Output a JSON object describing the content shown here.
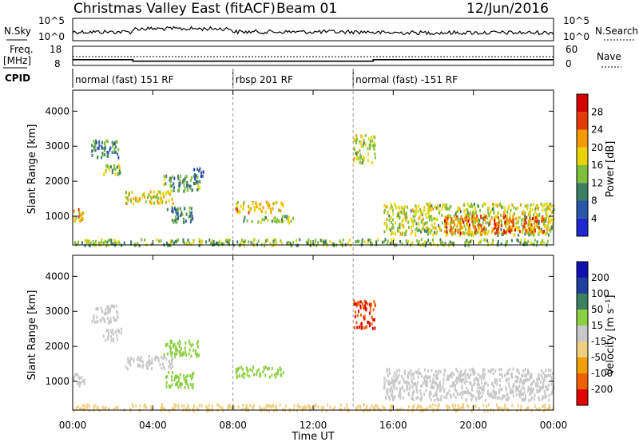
{
  "header": {
    "title": "Christmas Valley East (fitACF)",
    "beam": "Beam 01",
    "date": "12/Jun/2016"
  },
  "top_panels": {
    "nsky_label": "N.Sky",
    "nsky_ticks": [
      "10^5",
      "10^0"
    ],
    "nsearch_label": "N.Search",
    "nsearch_ticks": [
      "10^5",
      "10^0"
    ],
    "freq_label_1": "Freq.",
    "freq_label_2": "[MHz]",
    "freq_ticks": [
      "18",
      "8"
    ],
    "nave_label": "Nave",
    "nave_ticks": [
      "60",
      "0"
    ],
    "cpid_label": "CPID",
    "cpid_segments": [
      {
        "label": "normal (fast) 151 RF",
        "start_hour": 0,
        "end_hour": 8
      },
      {
        "label": "rbsp 201 RF",
        "start_hour": 8,
        "end_hour": 14
      },
      {
        "label": "normal (fast) -151 RF",
        "start_hour": 14,
        "end_hour": 24
      }
    ],
    "freq_profile_hours": [
      0,
      3,
      3,
      15,
      15,
      24
    ],
    "freq_profile_mhz": [
      11,
      11,
      10.2,
      10.2,
      11,
      11
    ]
  },
  "axes": {
    "xlabel": "Time UT",
    "x_ticks": [
      "00:00",
      "04:00",
      "08:00",
      "12:00",
      "16:00",
      "20:00",
      "00:00"
    ],
    "x_range_hours": [
      0,
      24
    ],
    "ylabel": "Slant Range [km]",
    "y_ticks": [
      1000,
      2000,
      3000,
      4000
    ],
    "y_range_km": [
      180,
      4600
    ]
  },
  "power_colorbar": {
    "label": "Power [dB]",
    "ticks": [
      "4",
      "8",
      "12",
      "16",
      "20",
      "24",
      "28"
    ],
    "colors": [
      "#1d28d0",
      "#2a55a8",
      "#3c7e64",
      "#7fbf3c",
      "#e8d400",
      "#f39a00",
      "#e23a00",
      "#d40000"
    ]
  },
  "velocity_colorbar": {
    "label": "Velocity [m s⁻¹]",
    "ticks": [
      "-200",
      "-100",
      "-50",
      "-15",
      "15",
      "50",
      "100",
      "200"
    ],
    "colors": [
      "#e00000",
      "#f06000",
      "#f0a000",
      "#f0d080",
      "#c8c8c8",
      "#8ad040",
      "#3c8060",
      "#2040a0",
      "#1010b0"
    ]
  },
  "chart_data": {
    "type": "heatmap",
    "title": "Christmas Valley East (fitACF)",
    "xlabel": "Time UT",
    "ylabel": "Slant Range [km]",
    "x_unit": "hours UT",
    "y_unit": "km",
    "vertical_markers_hours": [
      8,
      14
    ],
    "series": [
      {
        "name": "Power [dB]",
        "regions": [
          {
            "t0": 0.0,
            "t1": 0.6,
            "r0": 900,
            "r1": 1250,
            "value": 20
          },
          {
            "t0": 0.9,
            "t1": 2.3,
            "r0": 2700,
            "r1": 3200,
            "value": 10
          },
          {
            "t0": 1.5,
            "t1": 2.4,
            "r0": 2200,
            "r1": 2550,
            "value": 14
          },
          {
            "t0": 2.6,
            "t1": 5.0,
            "r0": 1400,
            "r1": 1750,
            "value": 18
          },
          {
            "t0": 4.5,
            "t1": 6.3,
            "r0": 1750,
            "r1": 2200,
            "value": 12
          },
          {
            "t0": 4.6,
            "t1": 6.0,
            "r0": 850,
            "r1": 1300,
            "value": 10
          },
          {
            "t0": 6.0,
            "t1": 6.5,
            "r0": 2000,
            "r1": 2400,
            "value": 8
          },
          {
            "t0": 8.1,
            "t1": 10.5,
            "r0": 1150,
            "r1": 1450,
            "value": 20
          },
          {
            "t0": 8.5,
            "t1": 11.0,
            "r0": 850,
            "r1": 1050,
            "value": 14
          },
          {
            "t0": 14.0,
            "t1": 15.1,
            "r0": 2550,
            "r1": 3350,
            "value": 16
          },
          {
            "t0": 15.5,
            "t1": 24.0,
            "r0": 500,
            "r1": 1400,
            "value": 16
          },
          {
            "t0": 18.5,
            "t1": 23.5,
            "r0": 550,
            "r1": 1050,
            "value": 24
          },
          {
            "t0": 0.0,
            "t1": 24.0,
            "r0": 200,
            "r1": 380,
            "value": 14
          }
        ]
      },
      {
        "name": "Velocity [m s⁻¹]",
        "regions": [
          {
            "t0": 0.0,
            "t1": 0.6,
            "r0": 900,
            "r1": 1250,
            "value": 0
          },
          {
            "t0": 0.9,
            "t1": 2.3,
            "r0": 2700,
            "r1": 3200,
            "value": 0
          },
          {
            "t0": 1.5,
            "t1": 2.4,
            "r0": 2200,
            "r1": 2550,
            "value": 0
          },
          {
            "t0": 2.6,
            "t1": 5.0,
            "r0": 1400,
            "r1": 1750,
            "value": 0
          },
          {
            "t0": 4.5,
            "t1": 6.3,
            "r0": 1750,
            "r1": 2200,
            "value": 30
          },
          {
            "t0": 4.6,
            "t1": 6.0,
            "r0": 850,
            "r1": 1300,
            "value": 30
          },
          {
            "t0": 8.1,
            "t1": 10.5,
            "r0": 1150,
            "r1": 1450,
            "value": 30
          },
          {
            "t0": 14.0,
            "t1": 15.1,
            "r0": 2550,
            "r1": 3350,
            "value": -200
          },
          {
            "t0": 15.5,
            "t1": 24.0,
            "r0": 500,
            "r1": 1400,
            "value": 0
          },
          {
            "t0": 0.0,
            "t1": 24.0,
            "r0": 200,
            "r1": 380,
            "value": -20
          }
        ]
      }
    ]
  }
}
